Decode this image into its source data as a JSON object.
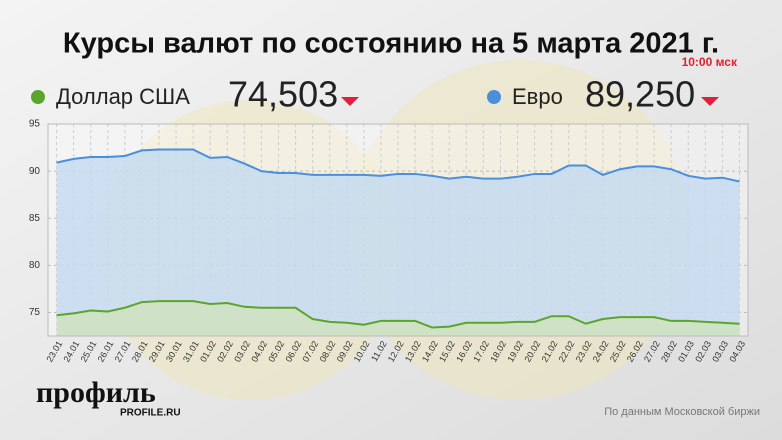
{
  "chart_data": {
    "type": "area",
    "title": "Курсы валют по состоянию на 5 марта 2021 г.",
    "subtitle": "10:00 мск",
    "categories": [
      "23.01",
      "24.01",
      "25.01",
      "26.01",
      "27.01",
      "28.01",
      "29.01",
      "30.01",
      "31.01",
      "01.02",
      "02.02",
      "03.02",
      "04.02",
      "05.02",
      "06.02",
      "07.02",
      "08.02",
      "09.02",
      "10.02",
      "11.02",
      "12.02",
      "13.02",
      "14.02",
      "15.02",
      "16.02",
      "17.02",
      "18.02",
      "19.02",
      "20.02",
      "21.02",
      "22.02",
      "23.02",
      "24.02",
      "25.02",
      "26.02",
      "27.02",
      "28.02",
      "01.03",
      "02.03",
      "03.03",
      "04.03"
    ],
    "series": [
      {
        "name": "Доллар США",
        "color": "#5aa52b",
        "fill": "#cfe3bf",
        "current_value": 74.503,
        "current_label": "74,503",
        "values": [
          74.7,
          74.9,
          75.2,
          75.1,
          75.5,
          76.1,
          76.2,
          76.2,
          76.2,
          75.9,
          76.0,
          75.6,
          75.5,
          75.5,
          75.5,
          74.3,
          74.0,
          73.9,
          73.7,
          74.1,
          74.1,
          74.1,
          73.4,
          73.5,
          73.9,
          73.9,
          73.9,
          74.0,
          74.0,
          74.6,
          74.6,
          73.8,
          74.3,
          74.5,
          74.5,
          74.5,
          74.1,
          74.1,
          74.0,
          73.9,
          73.8
        ]
      },
      {
        "name": "Евро",
        "color": "#4a8fdc",
        "fill": "#c6dbef",
        "current_value": 89.25,
        "current_label": "89,250",
        "values": [
          90.9,
          91.3,
          91.5,
          91.5,
          91.6,
          92.2,
          92.3,
          92.3,
          92.3,
          91.4,
          91.5,
          90.8,
          90.0,
          89.8,
          89.8,
          89.6,
          89.6,
          89.6,
          89.6,
          89.5,
          89.7,
          89.7,
          89.5,
          89.2,
          89.4,
          89.2,
          89.2,
          89.4,
          89.7,
          89.7,
          90.6,
          90.6,
          89.6,
          90.2,
          90.5,
          90.5,
          90.2,
          89.5,
          89.2,
          89.3,
          88.9
        ]
      }
    ],
    "ylim": [
      72.5,
      95
    ],
    "yticks": [
      75,
      80,
      85,
      90,
      95
    ],
    "grid": true,
    "logo": "профиль",
    "logo_url": "PROFILE.RU",
    "source": "По данным Московской биржи"
  }
}
